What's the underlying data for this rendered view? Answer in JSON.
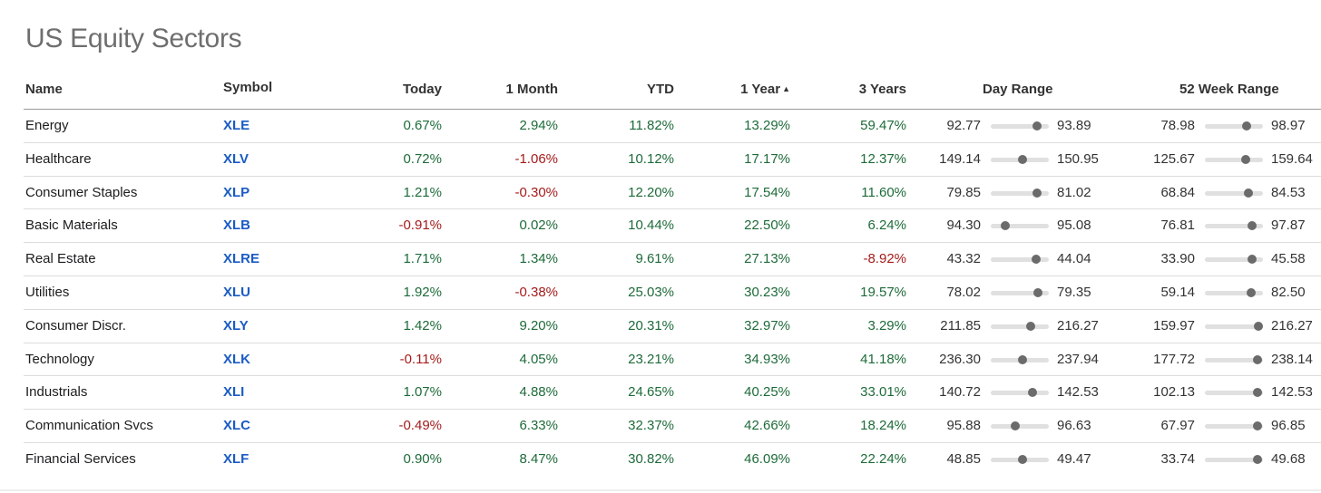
{
  "page": {
    "title": "US Equity Sectors"
  },
  "columns": {
    "name": "Name",
    "symbol": "Symbol",
    "today": "Today",
    "month": "1 Month",
    "ytd": "YTD",
    "year": "1 Year",
    "sort_indicator": "▲",
    "years3": "3 Years",
    "day_range": "Day Range",
    "week52_range": "52 Week Range"
  },
  "colors": {
    "positive": "#1e6b3a",
    "negative": "#a61b1b",
    "symbol": "#1a5bc4"
  },
  "rows": [
    {
      "name": "Energy",
      "symbol": "XLE",
      "today": "0.67%",
      "month": "2.94%",
      "ytd": "11.82%",
      "year": "13.29%",
      "years3": "59.47%",
      "day_low": "92.77",
      "day_high": "93.89",
      "day_pos": 0.8,
      "wk_low": "78.98",
      "wk_high": "98.97",
      "wk_pos": 0.72
    },
    {
      "name": "Healthcare",
      "symbol": "XLV",
      "today": "0.72%",
      "month": "-1.06%",
      "ytd": "10.12%",
      "year": "17.17%",
      "years3": "12.37%",
      "day_low": "149.14",
      "day_high": "150.95",
      "day_pos": 0.55,
      "wk_low": "125.67",
      "wk_high": "159.64",
      "wk_pos": 0.7
    },
    {
      "name": "Consumer Staples",
      "symbol": "XLP",
      "today": "1.21%",
      "month": "-0.30%",
      "ytd": "12.20%",
      "year": "17.54%",
      "years3": "11.60%",
      "day_low": "79.85",
      "day_high": "81.02",
      "day_pos": 0.8,
      "wk_low": "68.84",
      "wk_high": "84.53",
      "wk_pos": 0.75
    },
    {
      "name": "Basic Materials",
      "symbol": "XLB",
      "today": "-0.91%",
      "month": "0.02%",
      "ytd": "10.44%",
      "year": "22.50%",
      "years3": "6.24%",
      "day_low": "94.30",
      "day_high": "95.08",
      "day_pos": 0.25,
      "wk_low": "76.81",
      "wk_high": "97.87",
      "wk_pos": 0.82
    },
    {
      "name": "Real Estate",
      "symbol": "XLRE",
      "today": "1.71%",
      "month": "1.34%",
      "ytd": "9.61%",
      "year": "27.13%",
      "years3": "-8.92%",
      "day_low": "43.32",
      "day_high": "44.04",
      "day_pos": 0.78,
      "wk_low": "33.90",
      "wk_high": "45.58",
      "wk_pos": 0.82
    },
    {
      "name": "Utilities",
      "symbol": "XLU",
      "today": "1.92%",
      "month": "-0.38%",
      "ytd": "25.03%",
      "year": "30.23%",
      "years3": "19.57%",
      "day_low": "78.02",
      "day_high": "79.35",
      "day_pos": 0.82,
      "wk_low": "59.14",
      "wk_high": "82.50",
      "wk_pos": 0.8
    },
    {
      "name": "Consumer Discr.",
      "symbol": "XLY",
      "today": "1.42%",
      "month": "9.20%",
      "ytd": "20.31%",
      "year": "32.97%",
      "years3": "3.29%",
      "day_low": "211.85",
      "day_high": "216.27",
      "day_pos": 0.68,
      "wk_low": "159.97",
      "wk_high": "216.27",
      "wk_pos": 0.92
    },
    {
      "name": "Technology",
      "symbol": "XLK",
      "today": "-0.11%",
      "month": "4.05%",
      "ytd": "23.21%",
      "year": "34.93%",
      "years3": "41.18%",
      "day_low": "236.30",
      "day_high": "237.94",
      "day_pos": 0.55,
      "wk_low": "177.72",
      "wk_high": "238.14",
      "wk_pos": 0.9
    },
    {
      "name": "Industrials",
      "symbol": "XLI",
      "today": "1.07%",
      "month": "4.88%",
      "ytd": "24.65%",
      "year": "40.25%",
      "years3": "33.01%",
      "day_low": "140.72",
      "day_high": "142.53",
      "day_pos": 0.72,
      "wk_low": "102.13",
      "wk_high": "142.53",
      "wk_pos": 0.9
    },
    {
      "name": "Communication Svcs",
      "symbol": "XLC",
      "today": "-0.49%",
      "month": "6.33%",
      "ytd": "32.37%",
      "year": "42.66%",
      "years3": "18.24%",
      "day_low": "95.88",
      "day_high": "96.63",
      "day_pos": 0.42,
      "wk_low": "67.97",
      "wk_high": "96.85",
      "wk_pos": 0.9
    },
    {
      "name": "Financial Services",
      "symbol": "XLF",
      "today": "0.90%",
      "month": "8.47%",
      "ytd": "30.82%",
      "year": "46.09%",
      "years3": "22.24%",
      "day_low": "48.85",
      "day_high": "49.47",
      "day_pos": 0.55,
      "wk_low": "33.74",
      "wk_high": "49.68",
      "wk_pos": 0.9
    }
  ]
}
